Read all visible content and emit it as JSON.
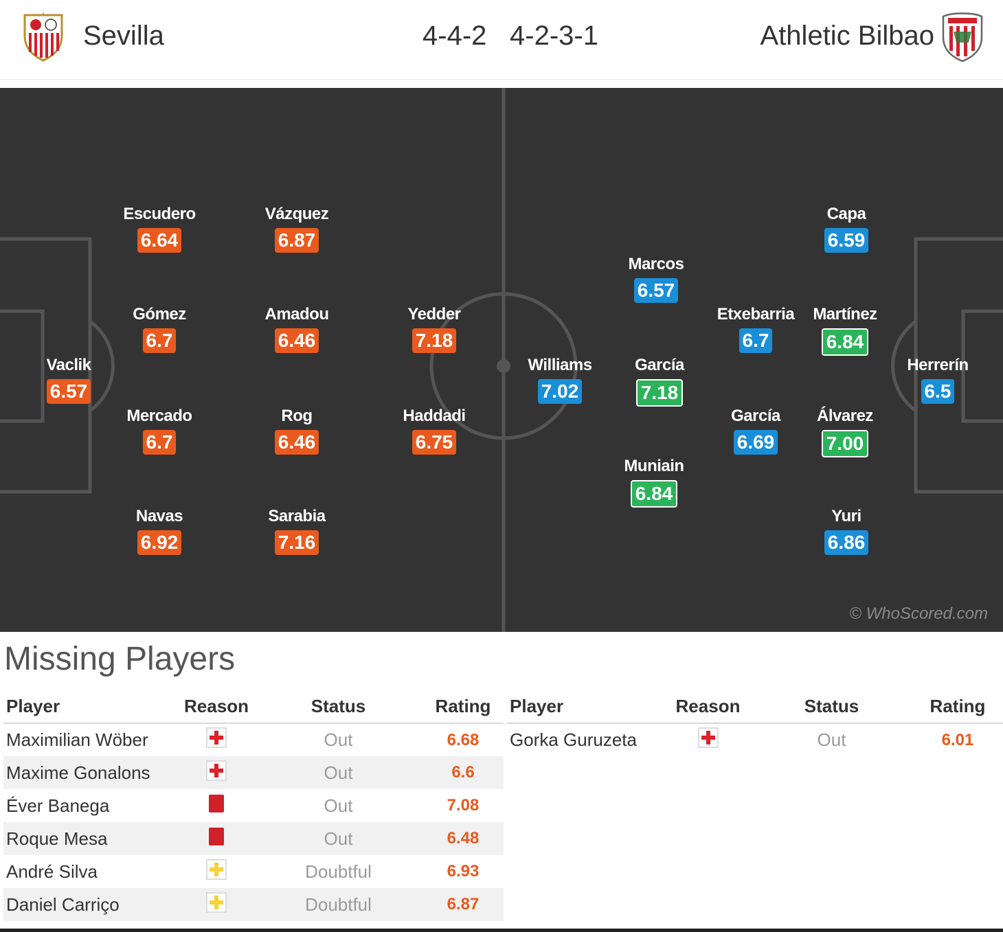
{
  "header": {
    "home_team": "Sevilla",
    "away_team": "Athletic Bilbao",
    "home_formation": "4-4-2",
    "away_formation": "4-2-3-1"
  },
  "pitch": {
    "watermark": "© WhoScored.com",
    "home_players": [
      {
        "name": "Vaclik",
        "rating": "6.57",
        "color": "orange"
      },
      {
        "name": "Escudero",
        "rating": "6.64",
        "color": "orange"
      },
      {
        "name": "Gómez",
        "rating": "6.7",
        "color": "orange"
      },
      {
        "name": "Mercado",
        "rating": "6.7",
        "color": "orange"
      },
      {
        "name": "Navas",
        "rating": "6.92",
        "color": "orange"
      },
      {
        "name": "Vázquez",
        "rating": "6.87",
        "color": "orange"
      },
      {
        "name": "Amadou",
        "rating": "6.46",
        "color": "orange"
      },
      {
        "name": "Rog",
        "rating": "6.46",
        "color": "orange"
      },
      {
        "name": "Sarabia",
        "rating": "7.16",
        "color": "orange"
      },
      {
        "name": "Yedder",
        "rating": "7.18",
        "color": "orange"
      },
      {
        "name": "Haddadi",
        "rating": "6.75",
        "color": "orange"
      }
    ],
    "away_players": [
      {
        "name": "Williams",
        "rating": "7.02",
        "color": "blue"
      },
      {
        "name": "Marcos",
        "rating": "6.57",
        "color": "blue"
      },
      {
        "name": "García",
        "rating": "7.18",
        "color": "green"
      },
      {
        "name": "Muniain",
        "rating": "6.84",
        "color": "green"
      },
      {
        "name": "Etxebarria",
        "rating": "6.7",
        "color": "blue"
      },
      {
        "name": "García",
        "rating": "6.69",
        "color": "blue"
      },
      {
        "name": "Capa",
        "rating": "6.59",
        "color": "blue"
      },
      {
        "name": "Martínez",
        "rating": "6.84",
        "color": "green"
      },
      {
        "name": "Álvarez",
        "rating": "7.00",
        "color": "green"
      },
      {
        "name": "Yuri",
        "rating": "6.86",
        "color": "blue"
      },
      {
        "name": "Herrerín",
        "rating": "6.5",
        "color": "blue"
      }
    ]
  },
  "missing": {
    "title": "Missing Players",
    "headers": {
      "player": "Player",
      "reason": "Reason",
      "status": "Status",
      "rating": "Rating"
    },
    "home": [
      {
        "player": "Maximilian Wöber",
        "reason": "injury-icon",
        "status": "Out",
        "rating": "6.68"
      },
      {
        "player": "Maxime Gonalons",
        "reason": "injury-icon",
        "status": "Out",
        "rating": "6.6"
      },
      {
        "player": "Éver Banega",
        "reason": "red-card-icon",
        "status": "Out",
        "rating": "7.08"
      },
      {
        "player": "Roque Mesa",
        "reason": "red-card-icon",
        "status": "Out",
        "rating": "6.48"
      },
      {
        "player": "André Silva",
        "reason": "doubtful-icon",
        "status": "Doubtful",
        "rating": "6.93"
      },
      {
        "player": "Daniel Carriço",
        "reason": "doubtful-icon",
        "status": "Doubtful",
        "rating": "6.87"
      }
    ],
    "away": [
      {
        "player": "Gorka Guruzeta",
        "reason": "injury-icon",
        "status": "Out",
        "rating": "6.01"
      }
    ]
  },
  "colors": {
    "home_rating": "#ea5a1e",
    "away_rating": "#1a8fd8",
    "top_rating": "#2bb45a",
    "pitch": "#333333"
  }
}
